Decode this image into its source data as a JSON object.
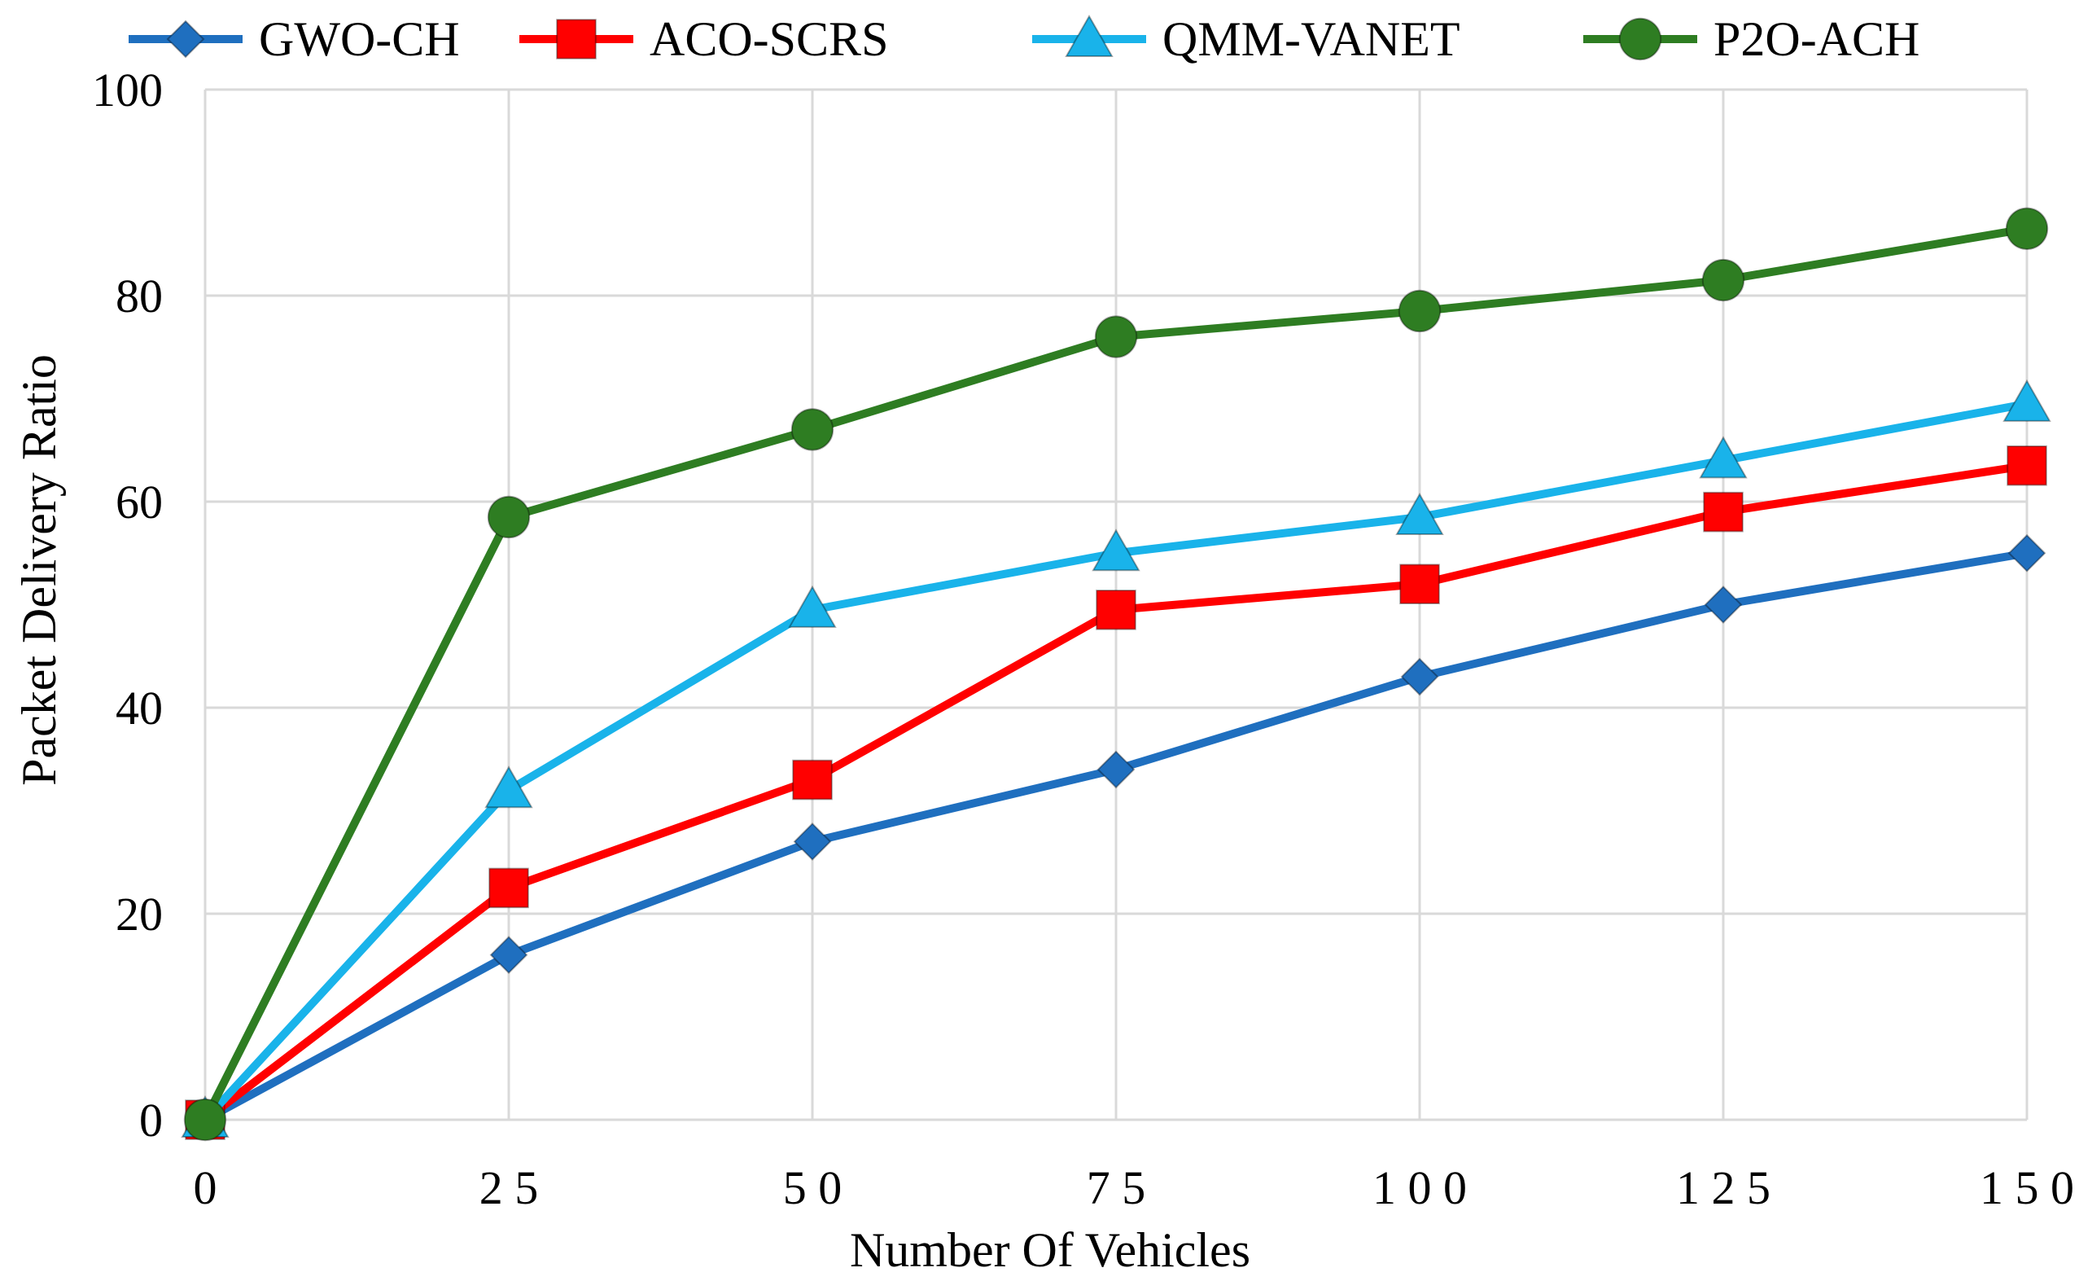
{
  "chart_data": {
    "type": "line",
    "title": "",
    "xlabel": "Number Of Vehicles",
    "ylabel": "Packet Delivery  Ratio",
    "x": [
      0,
      25,
      50,
      75,
      100,
      125,
      150
    ],
    "x_tick_labels": [
      "0",
      "2 5",
      "5 0",
      "7 5",
      "1 0 0",
      "1 2 5",
      "1 5 0"
    ],
    "y_ticks": [
      0,
      20,
      40,
      60,
      80,
      100
    ],
    "y_tick_labels": [
      "0",
      "20",
      "40",
      "60",
      "80",
      "100"
    ],
    "ylim": [
      0,
      100
    ],
    "grid": true,
    "legend_position": "top",
    "series": [
      {
        "name": "GWO-CH",
        "color": "#1f6fbf",
        "marker": "diamond",
        "values": [
          0,
          16,
          27,
          34,
          43,
          50,
          55
        ]
      },
      {
        "name": "ACO-SCRS",
        "color": "#ff0000",
        "marker": "square",
        "values": [
          0,
          22.5,
          33,
          49.5,
          52,
          59,
          63.5
        ]
      },
      {
        "name": "QMM-VANET",
        "color": "#19b3ea",
        "marker": "triangle",
        "values": [
          0,
          32,
          49.5,
          55,
          58.5,
          64,
          69.5
        ]
      },
      {
        "name": "P2O-ACH",
        "color": "#2e7d22",
        "marker": "circle",
        "values": [
          0,
          58.5,
          67,
          76,
          78.5,
          81.5,
          86.5
        ]
      }
    ]
  }
}
